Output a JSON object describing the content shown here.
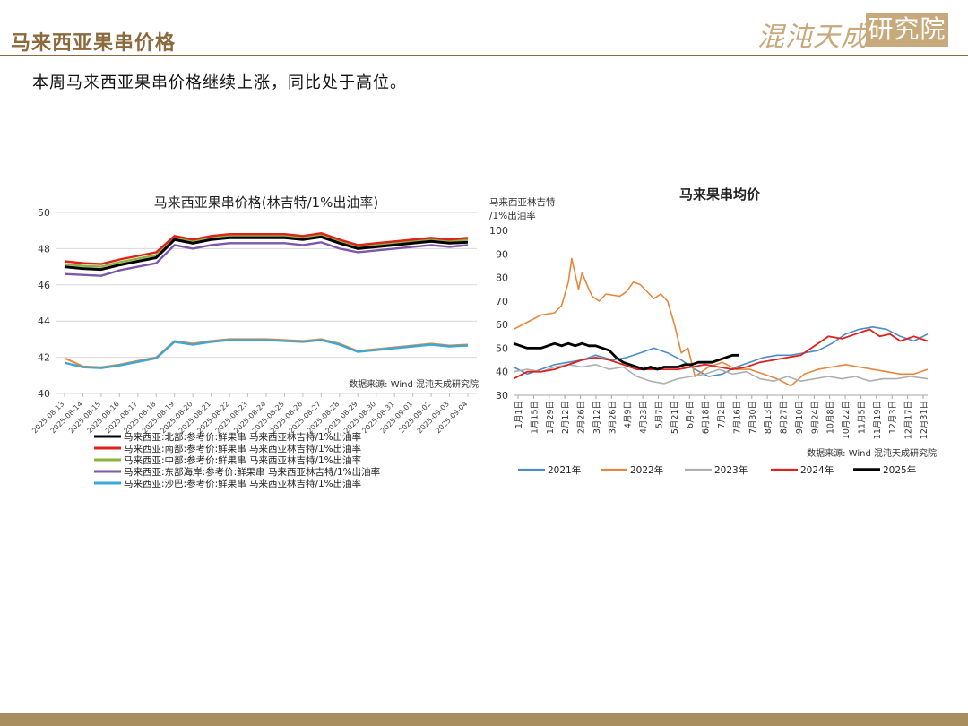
{
  "header": {
    "title": "马来西亚果串价格"
  },
  "logo": {
    "text_main": "混沌天成",
    "text_box": "研究院"
  },
  "subtitle": "本周马来西亚果串价格继续上涨，同比处于高位。",
  "colors": {
    "brand": "#8B6B3D",
    "footer": "#A98F5F"
  },
  "chart_data": [
    {
      "type": "line",
      "title": "马来西亚果串价格(林吉特/1%出油率)",
      "source": "数据来源: Wind  混沌天成研究院",
      "ylim": [
        40,
        50
      ],
      "yticks": [
        "40",
        "42",
        "44",
        "46",
        "48",
        "50"
      ],
      "grid": true,
      "legend_position": "bottom",
      "x": [
        "2025-08-13",
        "2025-08-14",
        "2025-08-15",
        "2025-08-16",
        "2025-08-17",
        "2025-08-18",
        "2025-08-19",
        "2025-08-20",
        "2025-08-21",
        "2025-08-22",
        "2025-08-23",
        "2025-08-24",
        "2025-08-25",
        "2025-08-26",
        "2025-08-27",
        "2025-08-28",
        "2025-08-29",
        "2025-08-30",
        "2025-08-31",
        "2025-09-01",
        "2025-09-02",
        "2025-09-03",
        "2025-09-04"
      ],
      "series": [
        {
          "name": "马来西亚:北部:参考价:鲜果串 马来西亚林吉特/1%出油率",
          "color": "#000000",
          "values": [
            47.0,
            46.9,
            46.85,
            47.1,
            47.3,
            47.5,
            48.5,
            48.3,
            48.5,
            48.6,
            48.6,
            48.6,
            48.6,
            48.5,
            48.65,
            48.3,
            48.0,
            48.1,
            48.2,
            48.3,
            48.4,
            48.3,
            48.35
          ]
        },
        {
          "name": "马来西亚:南部:参考价:鲜果串 马来西亚林吉特/1%出油率",
          "color": "#E0201B",
          "values": [
            47.3,
            47.2,
            47.15,
            47.4,
            47.6,
            47.8,
            48.7,
            48.5,
            48.7,
            48.8,
            48.8,
            48.8,
            48.8,
            48.7,
            48.85,
            48.5,
            48.2,
            48.3,
            48.4,
            48.5,
            48.6,
            48.5,
            48.6
          ]
        },
        {
          "name": "马来西亚:中部:参考价:鲜果串 马来西亚林吉特/1%出油率",
          "color": "#8DB33F",
          "values": [
            47.15,
            47.05,
            47.0,
            47.25,
            47.45,
            47.65,
            48.6,
            48.4,
            48.6,
            48.7,
            48.7,
            48.7,
            48.7,
            48.6,
            48.75,
            48.4,
            48.1,
            48.2,
            48.3,
            48.4,
            48.5,
            48.4,
            48.5
          ]
        },
        {
          "name": "马来西亚:东部海岸:参考价:鲜果串 马来西亚林吉特/1%出油率",
          "color": "#7E57A8",
          "values": [
            46.6,
            46.55,
            46.5,
            46.8,
            47.0,
            47.2,
            48.2,
            48.0,
            48.2,
            48.3,
            48.3,
            48.3,
            48.3,
            48.2,
            48.35,
            48.0,
            47.8,
            47.9,
            48.0,
            48.1,
            48.2,
            48.1,
            48.2
          ]
        },
        {
          "name": "马来西亚:沙巴:参考价:鲜果串 马来西亚林吉特/1%出油率",
          "color": "#3BA7D6",
          "values": [
            41.7,
            41.45,
            41.4,
            41.55,
            41.75,
            41.95,
            42.85,
            42.7,
            42.85,
            42.95,
            42.95,
            42.95,
            42.9,
            42.85,
            42.95,
            42.7,
            42.3,
            42.4,
            42.5,
            42.6,
            42.7,
            42.6,
            42.65
          ]
        }
      ],
      "orange_overlay": {
        "color": "#E8873C",
        "values": [
          41.95,
          41.5,
          41.45,
          41.6,
          41.8,
          42.0,
          42.9,
          42.75,
          42.9,
          43.0,
          43.0,
          43.0,
          42.95,
          42.9,
          43.0,
          42.75,
          42.35,
          42.45,
          42.55,
          42.65,
          42.75,
          42.65,
          42.7
        ]
      }
    },
    {
      "type": "line",
      "title": "马来果串均价",
      "ylabel_lines": [
        "马来西亚林吉特",
        "/1%出油率"
      ],
      "source": "数据来源: Wind  混沌天成研究院",
      "ylim": [
        30,
        100
      ],
      "yticks": [
        "30",
        "40",
        "50",
        "60",
        "70",
        "80",
        "90",
        "100"
      ],
      "grid": false,
      "legend_position": "bottom",
      "categories": [
        "1月1日",
        "1月15日",
        "1月29日",
        "2月12日",
        "2月26日",
        "3月12日",
        "3月26日",
        "4月9日",
        "4月23日",
        "5月7日",
        "5月21日",
        "6月4日",
        "6月18日",
        "7月2日",
        "7月16日",
        "7月30日",
        "8月13日",
        "8月27日",
        "9月10日",
        "9月24日",
        "10月8日",
        "10月22日",
        "11月5日",
        "11月19日",
        "12月3日",
        "12月17日",
        "12月31日"
      ],
      "series": [
        {
          "name": "2021年",
          "color": "#4C8CC6",
          "width": 1.6,
          "points": [
            [
              1,
              42
            ],
            [
              5,
              39
            ],
            [
              9,
              41
            ],
            [
              13,
              43
            ],
            [
              17,
              44
            ],
            [
              21,
              45
            ],
            [
              25,
              47
            ],
            [
              30,
              45
            ],
            [
              34,
              46
            ],
            [
              38,
              48
            ],
            [
              42,
              50
            ],
            [
              46,
              48
            ],
            [
              50,
              45
            ],
            [
              54,
              41
            ],
            [
              58,
              38
            ],
            [
              62,
              39
            ],
            [
              66,
              42
            ],
            [
              70,
              44
            ],
            [
              74,
              46
            ],
            [
              78,
              47
            ],
            [
              82,
              47
            ],
            [
              86,
              48
            ],
            [
              90,
              49
            ],
            [
              94,
              52
            ],
            [
              98,
              56
            ],
            [
              102,
              58
            ],
            [
              106,
              59
            ],
            [
              110,
              58
            ],
            [
              114,
              55
            ],
            [
              118,
              53
            ],
            [
              122,
              56
            ]
          ]
        },
        {
          "name": "2022年",
          "color": "#E8873C",
          "width": 1.6,
          "points": [
            [
              1,
              58
            ],
            [
              5,
              61
            ],
            [
              9,
              64
            ],
            [
              13,
              65
            ],
            [
              15,
              68
            ],
            [
              17,
              78
            ],
            [
              18,
              88
            ],
            [
              20,
              75
            ],
            [
              21,
              82
            ],
            [
              23,
              75
            ],
            [
              24,
              72
            ],
            [
              26,
              70
            ],
            [
              28,
              73
            ],
            [
              32,
              72
            ],
            [
              34,
              74
            ],
            [
              36,
              78
            ],
            [
              38,
              77
            ],
            [
              42,
              71
            ],
            [
              44,
              73
            ],
            [
              46,
              70
            ],
            [
              48,
              60
            ],
            [
              50,
              48
            ],
            [
              52,
              50
            ],
            [
              54,
              38
            ],
            [
              56,
              40
            ],
            [
              58,
              42
            ],
            [
              62,
              44
            ],
            [
              66,
              41
            ],
            [
              70,
              41
            ],
            [
              74,
              39
            ],
            [
              78,
              37
            ],
            [
              82,
              34
            ],
            [
              86,
              39
            ],
            [
              90,
              41
            ],
            [
              94,
              42
            ],
            [
              98,
              43
            ],
            [
              102,
              42
            ],
            [
              106,
              41
            ],
            [
              110,
              40
            ],
            [
              114,
              39
            ],
            [
              118,
              39
            ],
            [
              122,
              41
            ]
          ]
        },
        {
          "name": "2023年",
          "color": "#AFAFAF",
          "width": 1.6,
          "points": [
            [
              1,
              40
            ],
            [
              5,
              41
            ],
            [
              9,
              40
            ],
            [
              13,
              42
            ],
            [
              17,
              43
            ],
            [
              21,
              42
            ],
            [
              25,
              43
            ],
            [
              29,
              41
            ],
            [
              33,
              42
            ],
            [
              37,
              38
            ],
            [
              41,
              36
            ],
            [
              45,
              35
            ],
            [
              49,
              37
            ],
            [
              53,
              38
            ],
            [
              57,
              39
            ],
            [
              61,
              41
            ],
            [
              65,
              39
            ],
            [
              69,
              40
            ],
            [
              73,
              37
            ],
            [
              77,
              36
            ],
            [
              81,
              38
            ],
            [
              85,
              36
            ],
            [
              89,
              37
            ],
            [
              93,
              38
            ],
            [
              97,
              37
            ],
            [
              101,
              38
            ],
            [
              105,
              36
            ],
            [
              109,
              37
            ],
            [
              113,
              37
            ],
            [
              117,
              38
            ],
            [
              122,
              37
            ]
          ]
        },
        {
          "name": "2024年",
          "color": "#E0201B",
          "width": 1.8,
          "points": [
            [
              1,
              37
            ],
            [
              5,
              40
            ],
            [
              9,
              40
            ],
            [
              13,
              41
            ],
            [
              17,
              43
            ],
            [
              21,
              45
            ],
            [
              25,
              46
            ],
            [
              29,
              45
            ],
            [
              33,
              43
            ],
            [
              37,
              41
            ],
            [
              41,
              41
            ],
            [
              45,
              41
            ],
            [
              49,
              41
            ],
            [
              53,
              42
            ],
            [
              57,
              43
            ],
            [
              61,
              42
            ],
            [
              65,
              41
            ],
            [
              69,
              42
            ],
            [
              73,
              44
            ],
            [
              77,
              45
            ],
            [
              81,
              46
            ],
            [
              85,
              47
            ],
            [
              89,
              51
            ],
            [
              93,
              55
            ],
            [
              97,
              54
            ],
            [
              101,
              56
            ],
            [
              105,
              58
            ],
            [
              108,
              55
            ],
            [
              111,
              56
            ],
            [
              114,
              53
            ],
            [
              118,
              55
            ],
            [
              122,
              53
            ]
          ]
        },
        {
          "name": "2025年",
          "color": "#000000",
          "width": 2.8,
          "points": [
            [
              1,
              52
            ],
            [
              3,
              51
            ],
            [
              5,
              50
            ],
            [
              7,
              50
            ],
            [
              9,
              50
            ],
            [
              11,
              51
            ],
            [
              13,
              52
            ],
            [
              15,
              51
            ],
            [
              17,
              52
            ],
            [
              19,
              51
            ],
            [
              21,
              52
            ],
            [
              23,
              51
            ],
            [
              25,
              51
            ],
            [
              27,
              50
            ],
            [
              29,
              49
            ],
            [
              31,
              46
            ],
            [
              33,
              44
            ],
            [
              35,
              43
            ],
            [
              37,
              42
            ],
            [
              39,
              41
            ],
            [
              41,
              42
            ],
            [
              43,
              41
            ],
            [
              45,
              42
            ],
            [
              47,
              42
            ],
            [
              49,
              42
            ],
            [
              51,
              43
            ],
            [
              53,
              43
            ],
            [
              55,
              44
            ],
            [
              57,
              44
            ],
            [
              59,
              44
            ],
            [
              61,
              45
            ],
            [
              63,
              46
            ],
            [
              65,
              47
            ],
            [
              67,
              47
            ]
          ]
        }
      ],
      "x_range": [
        1,
        122
      ]
    }
  ]
}
